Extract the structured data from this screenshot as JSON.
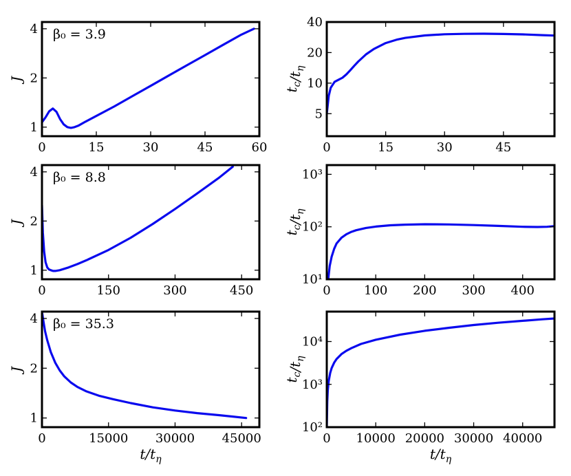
{
  "chart_data": [
    {
      "type": "line",
      "row": 0,
      "col": 0,
      "annotation": "β₀ = 3.9",
      "xlabel": "",
      "ylabel": "J",
      "xscale": "linear",
      "yscale": "log",
      "xlim": [
        0,
        60
      ],
      "ylim": [
        0.88,
        4.4
      ],
      "xticks": [
        0,
        15,
        30,
        45,
        60
      ],
      "xtick_labels": [
        "0",
        "15",
        "30",
        "45",
        "60"
      ],
      "yticks": [
        1,
        2,
        4
      ],
      "ytick_labels": [
        "1",
        "2",
        "4"
      ],
      "series": [
        {
          "x": [
            0,
            1,
            2,
            3,
            4,
            5,
            6,
            7,
            8,
            9,
            10,
            12,
            15,
            20,
            25,
            30,
            35,
            40,
            45,
            50,
            55,
            58.5
          ],
          "y": [
            1.07,
            1.15,
            1.25,
            1.3,
            1.24,
            1.12,
            1.04,
            1.0,
            0.99,
            1.0,
            1.02,
            1.08,
            1.17,
            1.34,
            1.55,
            1.79,
            2.07,
            2.39,
            2.76,
            3.19,
            3.68,
            4.0
          ]
        }
      ]
    },
    {
      "type": "line",
      "row": 0,
      "col": 1,
      "xlabel": "",
      "ylabel": "t_c/t_η",
      "xscale": "linear",
      "yscale": "log",
      "xlim": [
        0,
        58
      ],
      "ylim": [
        3,
        40
      ],
      "xticks": [
        0,
        15,
        30,
        45
      ],
      "xtick_labels": [
        "0",
        "15",
        "30",
        "45"
      ],
      "yticks": [
        5,
        10,
        20,
        40
      ],
      "ytick_labels": [
        "5",
        "10",
        "20",
        "40"
      ],
      "series": [
        {
          "x": [
            0,
            0.5,
            1,
            2,
            3,
            4,
            5,
            6,
            7,
            8,
            10,
            12,
            15,
            18,
            20,
            25,
            30,
            35,
            40,
            45,
            50,
            55,
            58
          ],
          "y": [
            5.0,
            7.5,
            9.0,
            10.3,
            10.8,
            11.3,
            12.2,
            13.4,
            14.8,
            16.3,
            19.2,
            21.7,
            24.8,
            26.9,
            27.9,
            29.5,
            30.3,
            30.6,
            30.7,
            30.5,
            30.2,
            29.7,
            29.4
          ]
        }
      ]
    },
    {
      "type": "line",
      "row": 1,
      "col": 0,
      "annotation": "β₀ = 8.8",
      "xlabel": "",
      "ylabel": "J",
      "xscale": "linear",
      "yscale": "log",
      "xlim": [
        0,
        490
      ],
      "ylim": [
        0.88,
        4.4
      ],
      "xticks": [
        0,
        150,
        300,
        450
      ],
      "xtick_labels": [
        "0",
        "150",
        "300",
        "450"
      ],
      "yticks": [
        1,
        2,
        4
      ],
      "ytick_labels": [
        "1",
        "2",
        "4"
      ],
      "series": [
        {
          "x": [
            0,
            2,
            5,
            8,
            12,
            16,
            20,
            25,
            30,
            40,
            60,
            80,
            100,
            150,
            200,
            250,
            300,
            350,
            400,
            430
          ],
          "y": [
            2.5,
            1.7,
            1.3,
            1.12,
            1.04,
            1.01,
            1.0,
            0.99,
            0.99,
            1.0,
            1.04,
            1.09,
            1.15,
            1.33,
            1.58,
            1.92,
            2.37,
            2.95,
            3.7,
            4.3
          ]
        }
      ]
    },
    {
      "type": "line",
      "row": 1,
      "col": 1,
      "xlabel": "",
      "ylabel": "t_c/t_η",
      "xscale": "linear",
      "yscale": "log",
      "xlim": [
        0,
        465
      ],
      "ylim": [
        10,
        1500
      ],
      "xticks": [
        0,
        100,
        200,
        300,
        400
      ],
      "xtick_labels": [
        "0",
        "100",
        "200",
        "300",
        "400"
      ],
      "yticks": [
        10,
        100,
        1000
      ],
      "ytick_labels": [
        "10¹",
        "10²",
        "10³"
      ],
      "series": [
        {
          "x": [
            3,
            6,
            10,
            15,
            20,
            30,
            40,
            50,
            60,
            80,
            100,
            130,
            160,
            200,
            250,
            300,
            350,
            400,
            430,
            450,
            465
          ],
          "y": [
            10,
            18,
            27,
            38,
            48,
            62,
            72,
            80,
            86,
            95,
            101,
            107,
            110,
            112,
            111,
            108,
            104,
            100,
            99,
            100,
            103
          ]
        }
      ]
    },
    {
      "type": "line",
      "row": 2,
      "col": 0,
      "annotation": "β₀ = 35.3",
      "xlabel": "t/t_η",
      "ylabel": "J",
      "xscale": "linear",
      "yscale": "log",
      "xlim": [
        0,
        49000
      ],
      "ylim": [
        0.88,
        4.4
      ],
      "xticks": [
        0,
        15000,
        30000,
        45000
      ],
      "xtick_labels": [
        "0",
        "15000",
        "30000",
        "45000"
      ],
      "yticks": [
        1,
        2,
        4
      ],
      "ytick_labels": [
        "1",
        "2",
        "4"
      ],
      "series": [
        {
          "x": [
            0,
            300,
            700,
            1200,
            2000,
            3000,
            4000,
            5000,
            6500,
            8000,
            10000,
            13000,
            16000,
            20000,
            25000,
            30000,
            35000,
            40000,
            43000,
            46000
          ],
          "y": [
            4.4,
            3.9,
            3.35,
            2.95,
            2.5,
            2.16,
            1.94,
            1.79,
            1.64,
            1.54,
            1.45,
            1.36,
            1.3,
            1.23,
            1.16,
            1.11,
            1.07,
            1.04,
            1.02,
            1.0
          ]
        }
      ]
    },
    {
      "type": "line",
      "row": 2,
      "col": 1,
      "xlabel": "t/t_η",
      "ylabel": "t_c/t_η",
      "xscale": "linear",
      "yscale": "log",
      "xlim": [
        0,
        46500
      ],
      "ylim": [
        100,
        50000
      ],
      "xticks": [
        0,
        10000,
        20000,
        30000,
        40000
      ],
      "xtick_labels": [
        "0",
        "10000",
        "20000",
        "30000",
        "40000"
      ],
      "yticks": [
        100,
        1000,
        10000
      ],
      "ytick_labels": [
        "10²",
        "10³",
        "10⁴"
      ],
      "series": [
        {
          "x": [
            0,
            100,
            200,
            400,
            700,
            1000,
            1500,
            2000,
            3000,
            4000,
            5000,
            7000,
            10000,
            15000,
            20000,
            25000,
            30000,
            35000,
            40000,
            44000,
            46500
          ],
          "y": [
            100,
            400,
            700,
            1200,
            1850,
            2400,
            3200,
            3900,
            5100,
            6100,
            7000,
            8800,
            11000,
            14500,
            17800,
            21000,
            24300,
            27500,
            30500,
            33000,
            34500
          ]
        }
      ]
    }
  ]
}
